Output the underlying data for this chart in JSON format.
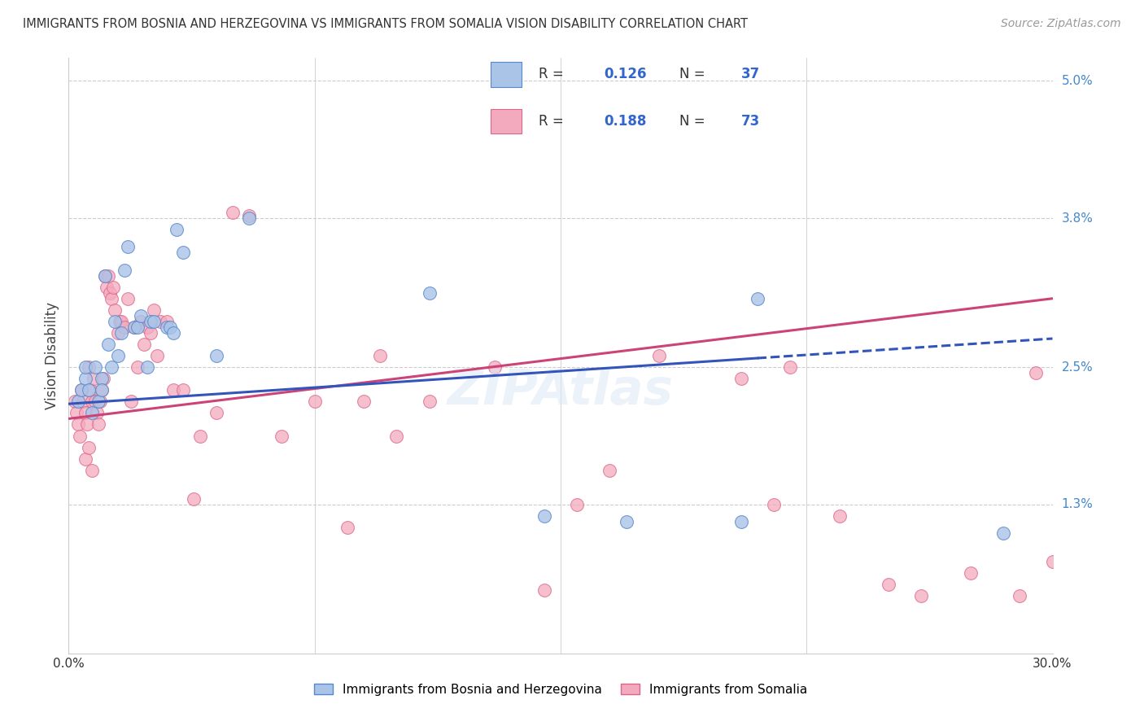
{
  "title": "IMMIGRANTS FROM BOSNIA AND HERZEGOVINA VS IMMIGRANTS FROM SOMALIA VISION DISABILITY CORRELATION CHART",
  "source": "Source: ZipAtlas.com",
  "ylabel": "Vision Disability",
  "xlim": [
    0.0,
    30.0
  ],
  "ylim": [
    0.0,
    5.2
  ],
  "yticks": [
    1.3,
    2.5,
    3.8,
    5.0
  ],
  "ytick_labels": [
    "1.3%",
    "2.5%",
    "3.8%",
    "5.0%"
  ],
  "bosnia_color": "#aac4e8",
  "somalia_color": "#f4aabe",
  "bosnia_edge_color": "#5588cc",
  "somalia_edge_color": "#dd6688",
  "bosnia_line_color": "#3355bb",
  "somalia_line_color": "#cc4477",
  "R_bosnia": "0.126",
  "N_bosnia": "37",
  "R_somalia": "0.188",
  "N_somalia": "73",
  "background_color": "#ffffff",
  "grid_color": "#cccccc",
  "watermark": "ZIPAtlas",
  "bosnia_label": "Immigrants from Bosnia and Herzegovina",
  "somalia_label": "Immigrants from Somalia",
  "bosnia_x": [
    0.3,
    0.4,
    0.5,
    0.5,
    0.6,
    0.7,
    0.8,
    0.9,
    1.0,
    1.0,
    1.1,
    1.2,
    1.3,
    1.4,
    1.5,
    1.6,
    1.7,
    1.8,
    2.0,
    2.1,
    2.2,
    2.4,
    2.5,
    2.6,
    3.0,
    3.1,
    3.2,
    3.3,
    3.5,
    4.5,
    5.5,
    11.0,
    14.5,
    17.0,
    20.5,
    21.0,
    28.5
  ],
  "bosnia_y": [
    2.2,
    2.3,
    2.4,
    2.5,
    2.3,
    2.1,
    2.5,
    2.2,
    2.4,
    2.3,
    3.3,
    2.7,
    2.5,
    2.9,
    2.6,
    2.8,
    3.35,
    3.55,
    2.85,
    2.85,
    2.95,
    2.5,
    2.9,
    2.9,
    2.85,
    2.85,
    2.8,
    3.7,
    3.5,
    2.6,
    3.8,
    3.15,
    1.2,
    1.15,
    1.15,
    3.1,
    1.05
  ],
  "somalia_x": [
    0.2,
    0.25,
    0.3,
    0.35,
    0.4,
    0.45,
    0.5,
    0.55,
    0.6,
    0.65,
    0.7,
    0.75,
    0.8,
    0.85,
    0.9,
    0.95,
    1.0,
    1.05,
    1.1,
    1.15,
    1.2,
    1.25,
    1.3,
    1.35,
    1.4,
    1.5,
    1.55,
    1.6,
    1.7,
    1.8,
    1.9,
    2.0,
    2.1,
    2.2,
    2.3,
    2.4,
    2.5,
    2.6,
    2.7,
    2.8,
    3.0,
    3.2,
    3.5,
    3.8,
    4.0,
    4.5,
    5.0,
    5.5,
    6.5,
    7.5,
    8.5,
    9.0,
    9.5,
    10.0,
    11.0,
    13.0,
    14.5,
    15.5,
    16.5,
    18.0,
    20.5,
    21.5,
    22.0,
    23.5,
    25.0,
    26.0,
    27.5,
    29.0,
    29.5,
    30.0,
    0.5,
    0.6,
    0.7
  ],
  "somalia_y": [
    2.2,
    2.1,
    2.0,
    1.9,
    2.3,
    2.2,
    2.1,
    2.0,
    2.5,
    2.3,
    2.2,
    2.4,
    2.2,
    2.1,
    2.0,
    2.2,
    2.3,
    2.4,
    3.3,
    3.2,
    3.3,
    3.15,
    3.1,
    3.2,
    3.0,
    2.8,
    2.9,
    2.9,
    2.85,
    3.1,
    2.2,
    2.85,
    2.5,
    2.9,
    2.7,
    2.85,
    2.8,
    3.0,
    2.6,
    2.9,
    2.9,
    2.3,
    2.3,
    1.35,
    1.9,
    2.1,
    3.85,
    3.82,
    1.9,
    2.2,
    1.1,
    2.2,
    2.6,
    1.9,
    2.2,
    2.5,
    0.55,
    1.3,
    1.6,
    2.6,
    2.4,
    1.3,
    2.5,
    1.2,
    0.6,
    0.5,
    0.7,
    0.5,
    2.45,
    0.8,
    1.7,
    1.8,
    1.6
  ]
}
